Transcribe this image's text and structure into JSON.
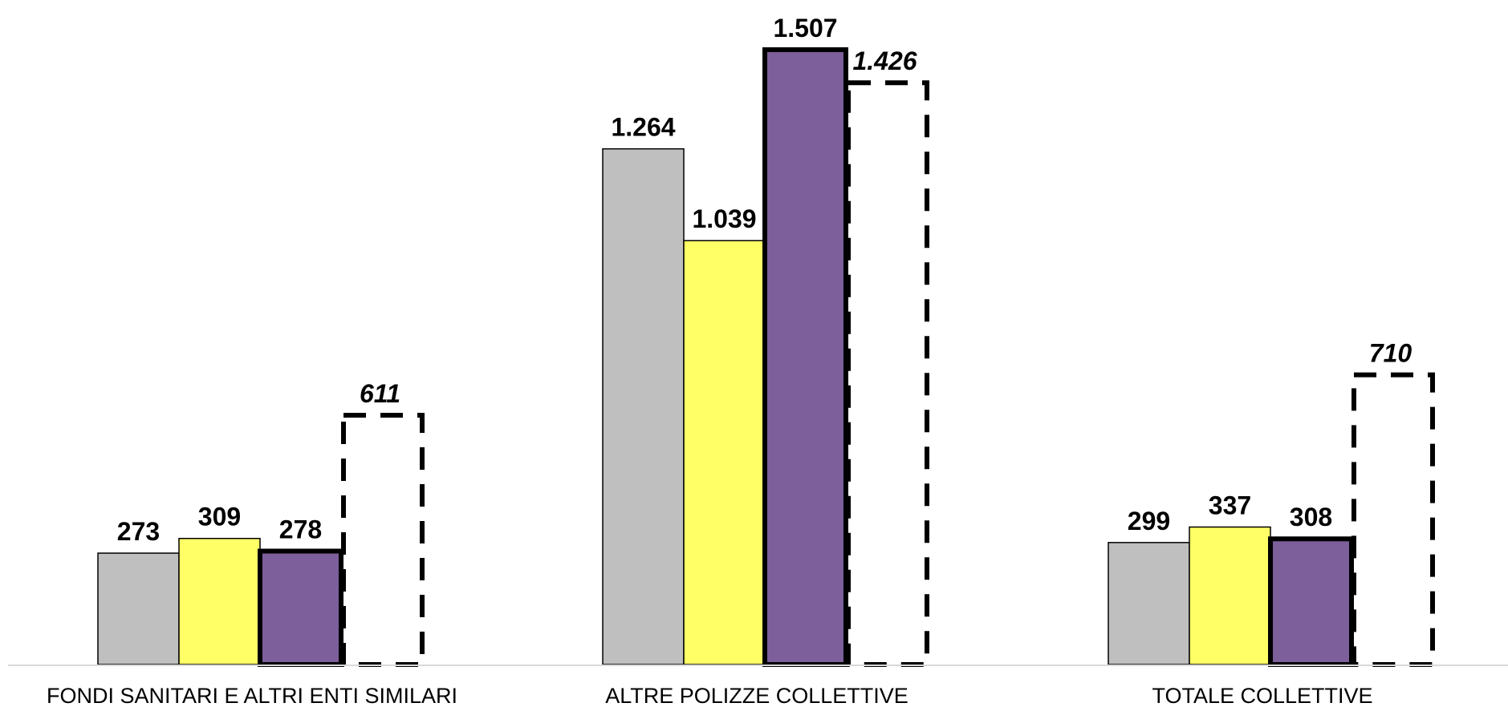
{
  "chart_data": {
    "type": "bar",
    "title": "",
    "xlabel": "",
    "ylabel": "",
    "categories": [
      "FONDI SANITARI E ALTRI ENTI SIMILARI",
      "ALTRE POLIZZE COLLETTIVE",
      "TOTALE COLLETTIVE"
    ],
    "ylim": [
      0,
      1620
    ],
    "grid": false,
    "legend": "none",
    "series": [
      {
        "values": [
          273,
          1264,
          299
        ],
        "labels": [
          "273",
          "1.264",
          "299"
        ],
        "color": "#bfbfbf",
        "style": "solid-thin"
      },
      {
        "values": [
          309,
          1039,
          337
        ],
        "labels": [
          "309",
          "1.039",
          "337"
        ],
        "color": "#ffff66",
        "style": "solid-thin"
      },
      {
        "values": [
          278,
          1507,
          308
        ],
        "labels": [
          "278",
          "1.507",
          "308"
        ],
        "color": "#7d5f9b",
        "style": "solid-thick"
      },
      {
        "values": [
          611,
          1426,
          710
        ],
        "labels": [
          "611",
          "1.426",
          "710"
        ],
        "color": "none",
        "style": "dashed"
      }
    ]
  }
}
